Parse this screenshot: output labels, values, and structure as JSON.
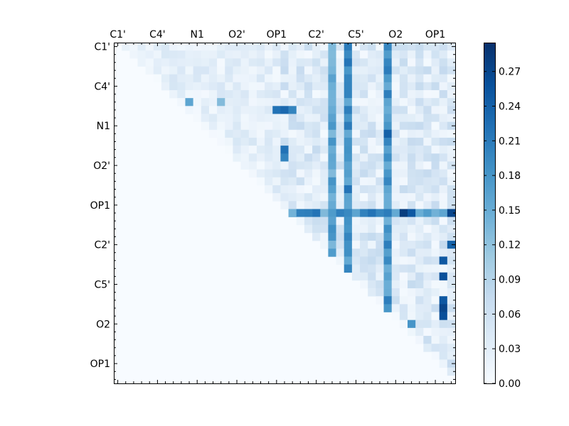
{
  "chart_data": {
    "type": "heatmap",
    "n": 43,
    "x_tick_labels": [
      "C1'",
      "C4'",
      "N1",
      "O2'",
      "OP1",
      "C2'",
      "C5'",
      "O2",
      "OP1"
    ],
    "y_tick_labels": [
      "C1'",
      "C4'",
      "N1",
      "O2'",
      "OP1",
      "C2'",
      "C5'",
      "O2",
      "OP1"
    ],
    "label_every": 5,
    "colorbar": {
      "min": 0.0,
      "max": 0.295,
      "ticks": [
        "0.00",
        "0.03",
        "0.06",
        "0.09",
        "0.12",
        "0.15",
        "0.18",
        "0.21",
        "0.24",
        "0.27"
      ],
      "colormap": "Blues"
    },
    "lower_triangle": "zero",
    "strong_columns": [
      {
        "col": 27,
        "value": 0.17
      },
      {
        "col": 29,
        "value": 0.2
      },
      {
        "col": 34,
        "value": 0.19
      }
    ],
    "strong_rows": [
      {
        "row": 21,
        "value": 0.22
      }
    ],
    "hotspots": [
      {
        "row": 8,
        "col": 20,
        "value": 0.22
      },
      {
        "row": 8,
        "col": 21,
        "value": 0.23
      },
      {
        "row": 8,
        "col": 22,
        "value": 0.2
      },
      {
        "row": 13,
        "col": 21,
        "value": 0.22
      },
      {
        "row": 14,
        "col": 21,
        "value": 0.2
      },
      {
        "row": 11,
        "col": 34,
        "value": 0.24
      },
      {
        "row": 21,
        "col": 36,
        "value": 0.28
      },
      {
        "row": 21,
        "col": 37,
        "value": 0.25
      },
      {
        "row": 21,
        "col": 42,
        "value": 0.27
      },
      {
        "row": 25,
        "col": 42,
        "value": 0.24
      },
      {
        "row": 27,
        "col": 41,
        "value": 0.25
      },
      {
        "row": 29,
        "col": 41,
        "value": 0.26
      },
      {
        "row": 32,
        "col": 41,
        "value": 0.25
      },
      {
        "row": 33,
        "col": 41,
        "value": 0.27
      },
      {
        "row": 34,
        "col": 41,
        "value": 0.26
      },
      {
        "row": 35,
        "col": 37,
        "value": 0.18
      },
      {
        "row": 7,
        "col": 9,
        "value": 0.16
      },
      {
        "row": 7,
        "col": 13,
        "value": 0.13
      }
    ]
  }
}
